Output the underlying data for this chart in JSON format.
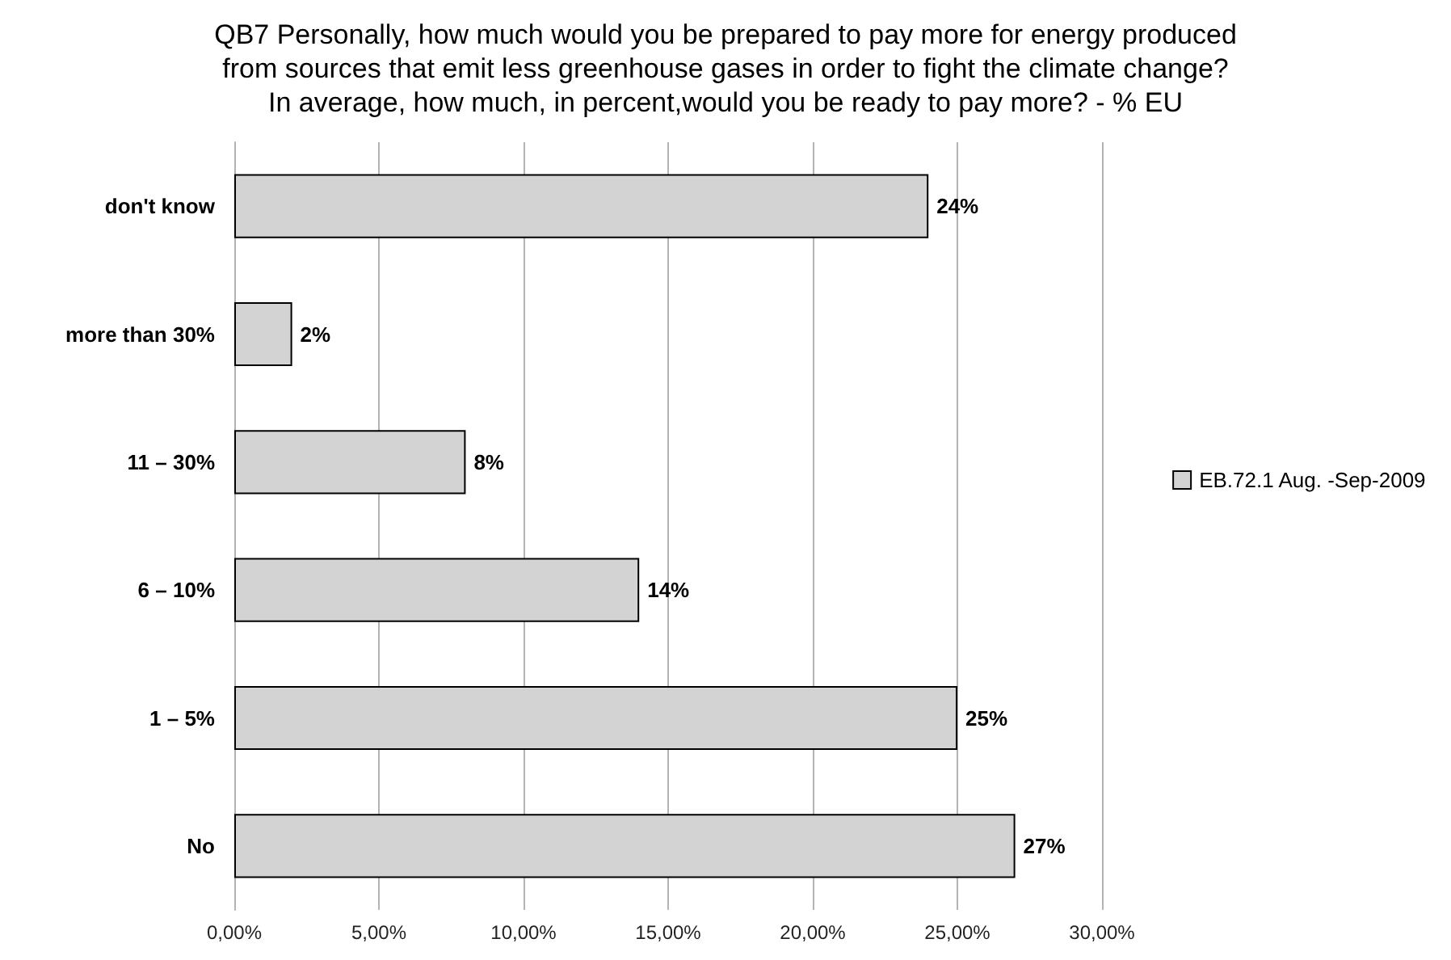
{
  "chart_data": {
    "type": "bar",
    "orientation": "horizontal",
    "title": "QB7 Personally, how much would you be prepared to pay more for energy produced\nfrom sources that emit less greenhouse gases in order to fight the climate change?\nIn average, how much, in percent,would you be ready to pay more? - % EU",
    "categories": [
      "don't know",
      "more than 30%",
      "11 – 30%",
      "6 – 10%",
      "1 – 5%",
      "No"
    ],
    "series": [
      {
        "name": "EB.72.1 Aug. -Sep-2009",
        "color": "#d3d3d3",
        "values": [
          24,
          2,
          8,
          14,
          25,
          27
        ],
        "value_labels": [
          "24%",
          "2%",
          "8%",
          "14%",
          "25%",
          "27%"
        ]
      }
    ],
    "xlim": [
      0,
      30
    ],
    "xticks": [
      {
        "value": 0,
        "label": "0,00%"
      },
      {
        "value": 5,
        "label": "5,00%"
      },
      {
        "value": 10,
        "label": "10,00%"
      },
      {
        "value": 15,
        "label": "15,00%"
      },
      {
        "value": 20,
        "label": "20,00%"
      },
      {
        "value": 25,
        "label": "25,00%"
      },
      {
        "value": 30,
        "label": "30,00%"
      }
    ],
    "grid": "x",
    "legend": "right"
  }
}
